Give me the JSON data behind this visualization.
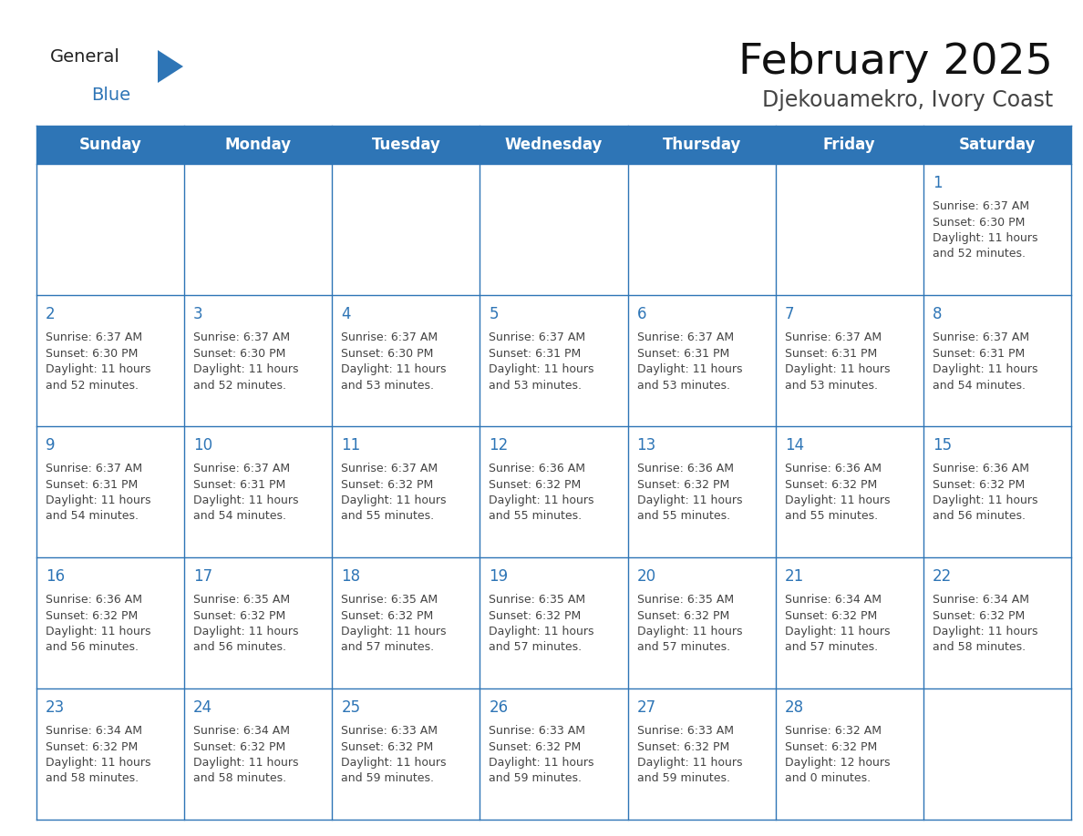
{
  "title": "February 2025",
  "subtitle": "Djekouamekro, Ivory Coast",
  "title_fontsize": 34,
  "subtitle_fontsize": 17,
  "header_bg": "#2E75B6",
  "header_text_color": "#FFFFFF",
  "header_fontsize": 12,
  "day_names": [
    "Sunday",
    "Monday",
    "Tuesday",
    "Wednesday",
    "Thursday",
    "Friday",
    "Saturday"
  ],
  "cell_text_color": "#444444",
  "day_number_color": "#2E75B6",
  "day_number_fontsize": 12,
  "cell_fontsize": 9,
  "line_color": "#2E75B6",
  "logo_color_general": "#222222",
  "logo_color_blue": "#2E75B6",
  "logo_triangle_color": "#2E75B6",
  "weeks": [
    [
      {
        "day": null,
        "info": ""
      },
      {
        "day": null,
        "info": ""
      },
      {
        "day": null,
        "info": ""
      },
      {
        "day": null,
        "info": ""
      },
      {
        "day": null,
        "info": ""
      },
      {
        "day": null,
        "info": ""
      },
      {
        "day": 1,
        "info": "Sunrise: 6:37 AM\nSunset: 6:30 PM\nDaylight: 11 hours\nand 52 minutes."
      }
    ],
    [
      {
        "day": 2,
        "info": "Sunrise: 6:37 AM\nSunset: 6:30 PM\nDaylight: 11 hours\nand 52 minutes."
      },
      {
        "day": 3,
        "info": "Sunrise: 6:37 AM\nSunset: 6:30 PM\nDaylight: 11 hours\nand 52 minutes."
      },
      {
        "day": 4,
        "info": "Sunrise: 6:37 AM\nSunset: 6:30 PM\nDaylight: 11 hours\nand 53 minutes."
      },
      {
        "day": 5,
        "info": "Sunrise: 6:37 AM\nSunset: 6:31 PM\nDaylight: 11 hours\nand 53 minutes."
      },
      {
        "day": 6,
        "info": "Sunrise: 6:37 AM\nSunset: 6:31 PM\nDaylight: 11 hours\nand 53 minutes."
      },
      {
        "day": 7,
        "info": "Sunrise: 6:37 AM\nSunset: 6:31 PM\nDaylight: 11 hours\nand 53 minutes."
      },
      {
        "day": 8,
        "info": "Sunrise: 6:37 AM\nSunset: 6:31 PM\nDaylight: 11 hours\nand 54 minutes."
      }
    ],
    [
      {
        "day": 9,
        "info": "Sunrise: 6:37 AM\nSunset: 6:31 PM\nDaylight: 11 hours\nand 54 minutes."
      },
      {
        "day": 10,
        "info": "Sunrise: 6:37 AM\nSunset: 6:31 PM\nDaylight: 11 hours\nand 54 minutes."
      },
      {
        "day": 11,
        "info": "Sunrise: 6:37 AM\nSunset: 6:32 PM\nDaylight: 11 hours\nand 55 minutes."
      },
      {
        "day": 12,
        "info": "Sunrise: 6:36 AM\nSunset: 6:32 PM\nDaylight: 11 hours\nand 55 minutes."
      },
      {
        "day": 13,
        "info": "Sunrise: 6:36 AM\nSunset: 6:32 PM\nDaylight: 11 hours\nand 55 minutes."
      },
      {
        "day": 14,
        "info": "Sunrise: 6:36 AM\nSunset: 6:32 PM\nDaylight: 11 hours\nand 55 minutes."
      },
      {
        "day": 15,
        "info": "Sunrise: 6:36 AM\nSunset: 6:32 PM\nDaylight: 11 hours\nand 56 minutes."
      }
    ],
    [
      {
        "day": 16,
        "info": "Sunrise: 6:36 AM\nSunset: 6:32 PM\nDaylight: 11 hours\nand 56 minutes."
      },
      {
        "day": 17,
        "info": "Sunrise: 6:35 AM\nSunset: 6:32 PM\nDaylight: 11 hours\nand 56 minutes."
      },
      {
        "day": 18,
        "info": "Sunrise: 6:35 AM\nSunset: 6:32 PM\nDaylight: 11 hours\nand 57 minutes."
      },
      {
        "day": 19,
        "info": "Sunrise: 6:35 AM\nSunset: 6:32 PM\nDaylight: 11 hours\nand 57 minutes."
      },
      {
        "day": 20,
        "info": "Sunrise: 6:35 AM\nSunset: 6:32 PM\nDaylight: 11 hours\nand 57 minutes."
      },
      {
        "day": 21,
        "info": "Sunrise: 6:34 AM\nSunset: 6:32 PM\nDaylight: 11 hours\nand 57 minutes."
      },
      {
        "day": 22,
        "info": "Sunrise: 6:34 AM\nSunset: 6:32 PM\nDaylight: 11 hours\nand 58 minutes."
      }
    ],
    [
      {
        "day": 23,
        "info": "Sunrise: 6:34 AM\nSunset: 6:32 PM\nDaylight: 11 hours\nand 58 minutes."
      },
      {
        "day": 24,
        "info": "Sunrise: 6:34 AM\nSunset: 6:32 PM\nDaylight: 11 hours\nand 58 minutes."
      },
      {
        "day": 25,
        "info": "Sunrise: 6:33 AM\nSunset: 6:32 PM\nDaylight: 11 hours\nand 59 minutes."
      },
      {
        "day": 26,
        "info": "Sunrise: 6:33 AM\nSunset: 6:32 PM\nDaylight: 11 hours\nand 59 minutes."
      },
      {
        "day": 27,
        "info": "Sunrise: 6:33 AM\nSunset: 6:32 PM\nDaylight: 11 hours\nand 59 minutes."
      },
      {
        "day": 28,
        "info": "Sunrise: 6:32 AM\nSunset: 6:32 PM\nDaylight: 12 hours\nand 0 minutes."
      },
      {
        "day": null,
        "info": ""
      }
    ]
  ]
}
